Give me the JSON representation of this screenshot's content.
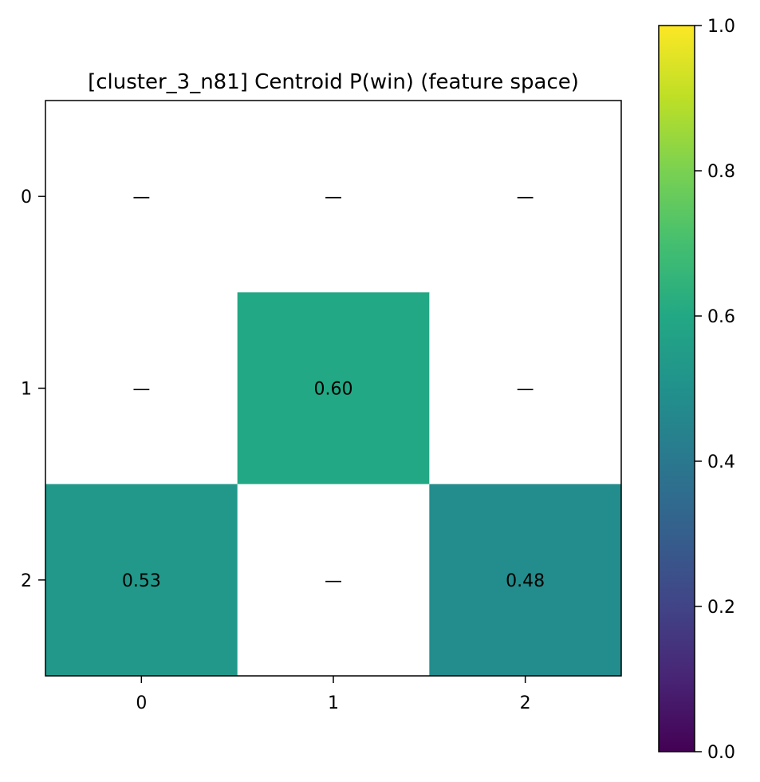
{
  "chart_data": {
    "type": "heatmap",
    "title": "[cluster_3_n81] Centroid P(win) (feature space)",
    "xlabel": "",
    "ylabel": "",
    "x_ticks": [
      "0",
      "1",
      "2"
    ],
    "y_ticks": [
      "0",
      "1",
      "2"
    ],
    "values": [
      [
        null,
        null,
        null
      ],
      [
        null,
        0.6,
        null
      ],
      [
        0.53,
        null,
        0.48
      ]
    ],
    "cell_labels": [
      [
        "—",
        "—",
        "—"
      ],
      [
        "—",
        "0.60",
        "—"
      ],
      [
        "0.53",
        "—",
        "0.48"
      ]
    ],
    "colormap": "viridis",
    "missing_color": "#ffffff",
    "vmin": 0.0,
    "vmax": 1.0,
    "colorbar": {
      "range": [
        0.0,
        1.0
      ],
      "ticks": [
        "0.0",
        "0.2",
        "0.4",
        "0.6",
        "0.8",
        "1.0"
      ],
      "tick_values": [
        0.0,
        0.2,
        0.4,
        0.6,
        0.8,
        1.0
      ],
      "placement": "right"
    },
    "grid": false,
    "legend": "none"
  }
}
